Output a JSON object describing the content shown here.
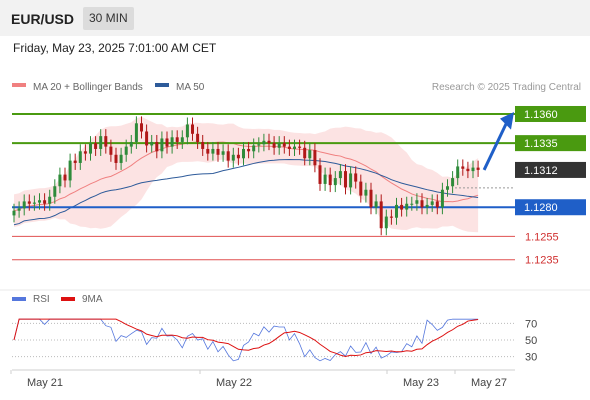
{
  "header": {
    "pair": "EUR/USD",
    "timeframe": "30 MIN",
    "datetime": "Friday, May 23, 2025 7:01:00 AM CET"
  },
  "chart_data": {
    "type": "candlestick",
    "credit": "Research © 2025 Trading Central",
    "legend": [
      {
        "name": "MA 20 + Bollinger Bands",
        "color": "#f08080"
      },
      {
        "name": "MA 50",
        "color": "#2e5b9a"
      }
    ],
    "x_tick_labels": [
      "May 21",
      "May 22",
      "May 23",
      "May 27"
    ],
    "y_range": [
      1.1215,
      1.1372
    ],
    "levels": [
      {
        "label": "1.1360",
        "value": 1.136,
        "color": "#4a9a10",
        "style": "resistance"
      },
      {
        "label": "1.1335",
        "value": 1.1335,
        "color": "#4a9a10",
        "style": "resistance"
      },
      {
        "label": "1.1312",
        "value": 1.1312,
        "color": "#333333",
        "style": "current"
      },
      {
        "label": "1.1280",
        "value": 1.128,
        "color": "#1f5fc8",
        "style": "pivot"
      },
      {
        "label": "1.1255",
        "value": 1.1255,
        "color": "#e05050",
        "style": "support"
      },
      {
        "label": "1.1235",
        "value": 1.1235,
        "color": "#e05050",
        "style": "support"
      }
    ],
    "closes": [
      1.1277,
      1.1279,
      1.1285,
      1.1283,
      1.1284,
      1.1286,
      1.1283,
      1.1289,
      1.1298,
      1.1308,
      1.1303,
      1.132,
      1.1318,
      1.1328,
      1.1326,
      1.1335,
      1.133,
      1.1341,
      1.1332,
      1.1325,
      1.1318,
      1.1325,
      1.1332,
      1.1336,
      1.1352,
      1.1345,
      1.1333,
      1.1336,
      1.1328,
      1.1339,
      1.1332,
      1.134,
      1.1336,
      1.134,
      1.1351,
      1.1343,
      1.1336,
      1.133,
      1.1326,
      1.133,
      1.1325,
      1.1328,
      1.132,
      1.1325,
      1.1322,
      1.133,
      1.1328,
      1.1333,
      1.1334,
      1.1337,
      1.1335,
      1.1331,
      1.1335,
      1.1332,
      1.133,
      1.1332,
      1.1331,
      1.1322,
      1.1329,
      1.1316,
      1.13,
      1.1308,
      1.1299,
      1.1305,
      1.1311,
      1.1297,
      1.1309,
      1.1302,
      1.129,
      1.1295,
      1.128,
      1.1285,
      1.1262,
      1.1272,
      1.1271,
      1.1282,
      1.1278,
      1.1283,
      1.1283,
      1.1286,
      1.128,
      1.1282,
      1.1285,
      1.128,
      1.1295,
      1.1298,
      1.1305,
      1.1315,
      1.1313,
      1.1311,
      1.1314,
      1.1312
    ],
    "rsi": {
      "labels": [
        "RSI",
        "9MA"
      ],
      "colors": [
        "#5577dd",
        "#dd1111"
      ],
      "y_ticks": [
        "70",
        "50",
        "30"
      ],
      "y_range": [
        20,
        80
      ]
    }
  }
}
